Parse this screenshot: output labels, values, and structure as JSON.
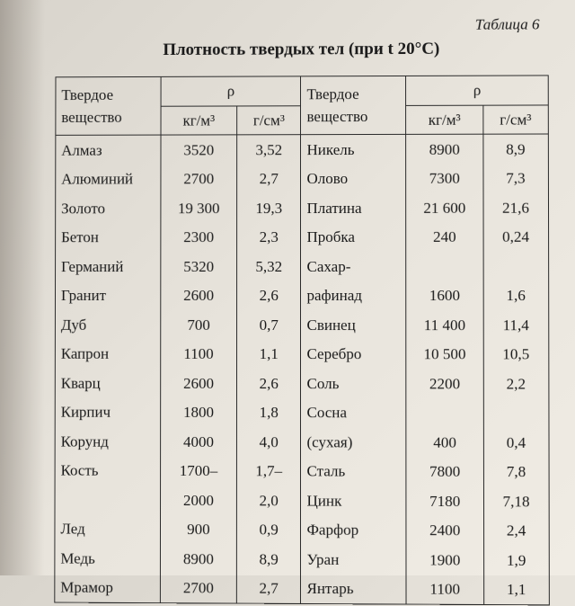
{
  "table_label": "Таблица 6",
  "title": "Плотность твердых тел (при t 20°С)",
  "headers": {
    "substance": "Твердое вещество",
    "rho": "ρ",
    "kgm": "кг/м³",
    "gcm": "г/см³"
  },
  "left": [
    {
      "name": "Алмаз",
      "kgm": "3520",
      "gcm": "3,52"
    },
    {
      "name": "Алюминий",
      "kgm": "2700",
      "gcm": "2,7"
    },
    {
      "name": "Золото",
      "kgm": "19 300",
      "gcm": "19,3"
    },
    {
      "name": "Бетон",
      "kgm": "2300",
      "gcm": "2,3"
    },
    {
      "name": "Германий",
      "kgm": "5320",
      "gcm": "5,32"
    },
    {
      "name": "Гранит",
      "kgm": "2600",
      "gcm": "2,6"
    },
    {
      "name": "Дуб",
      "kgm": "700",
      "gcm": "0,7"
    },
    {
      "name": "Капрон",
      "kgm": "1100",
      "gcm": "1,1"
    },
    {
      "name": "Кварц",
      "kgm": "2600",
      "gcm": "2,6"
    },
    {
      "name": "Кирпич",
      "kgm": "1800",
      "gcm": "1,8"
    },
    {
      "name": "Корунд",
      "kgm": "4000",
      "gcm": "4,0"
    },
    {
      "name": "Кость",
      "kgm": "1700–",
      "gcm": "1,7–"
    },
    {
      "name": "",
      "kgm": "2000",
      "gcm": "2,0"
    },
    {
      "name": "Лед",
      "kgm": "900",
      "gcm": "0,9"
    },
    {
      "name": "Медь",
      "kgm": "8900",
      "gcm": "8,9"
    },
    {
      "name": "Мрамор",
      "kgm": "2700",
      "gcm": "2,7"
    }
  ],
  "right": [
    {
      "name": "Никель",
      "kgm": "8900",
      "gcm": "8,9"
    },
    {
      "name": "Олово",
      "kgm": "7300",
      "gcm": "7,3"
    },
    {
      "name": "Платина",
      "kgm": "21 600",
      "gcm": "21,6"
    },
    {
      "name": "Пробка",
      "kgm": "240",
      "gcm": "0,24"
    },
    {
      "name": "Сахар-",
      "kgm": "",
      "gcm": ""
    },
    {
      "name": "рафинад",
      "kgm": "1600",
      "gcm": "1,6"
    },
    {
      "name": "Свинец",
      "kgm": "11 400",
      "gcm": "11,4"
    },
    {
      "name": "Серебро",
      "kgm": "10 500",
      "gcm": "10,5"
    },
    {
      "name": "Соль",
      "kgm": "2200",
      "gcm": "2,2"
    },
    {
      "name": "Сосна",
      "kgm": "",
      "gcm": ""
    },
    {
      "name": "(сухая)",
      "kgm": "400",
      "gcm": "0,4"
    },
    {
      "name": "Сталь",
      "kgm": "7800",
      "gcm": "7,8"
    },
    {
      "name": "Цинк",
      "kgm": "7180",
      "gcm": "7,18"
    },
    {
      "name": "Фарфор",
      "kgm": "2400",
      "gcm": "2,4"
    },
    {
      "name": "Уран",
      "kgm": "1900",
      "gcm": "1,9"
    },
    {
      "name": "Янтарь",
      "kgm": "1100",
      "gcm": "1,1"
    }
  ],
  "style": {
    "font_family": "Times New Roman",
    "title_fontsize": 19,
    "body_fontsize": 17,
    "border_color": "#2a2a2a",
    "text_color": "#1a1a1a",
    "bg_gradient": [
      "#d8d4cc",
      "#e8e4dc",
      "#f0ece4"
    ]
  }
}
